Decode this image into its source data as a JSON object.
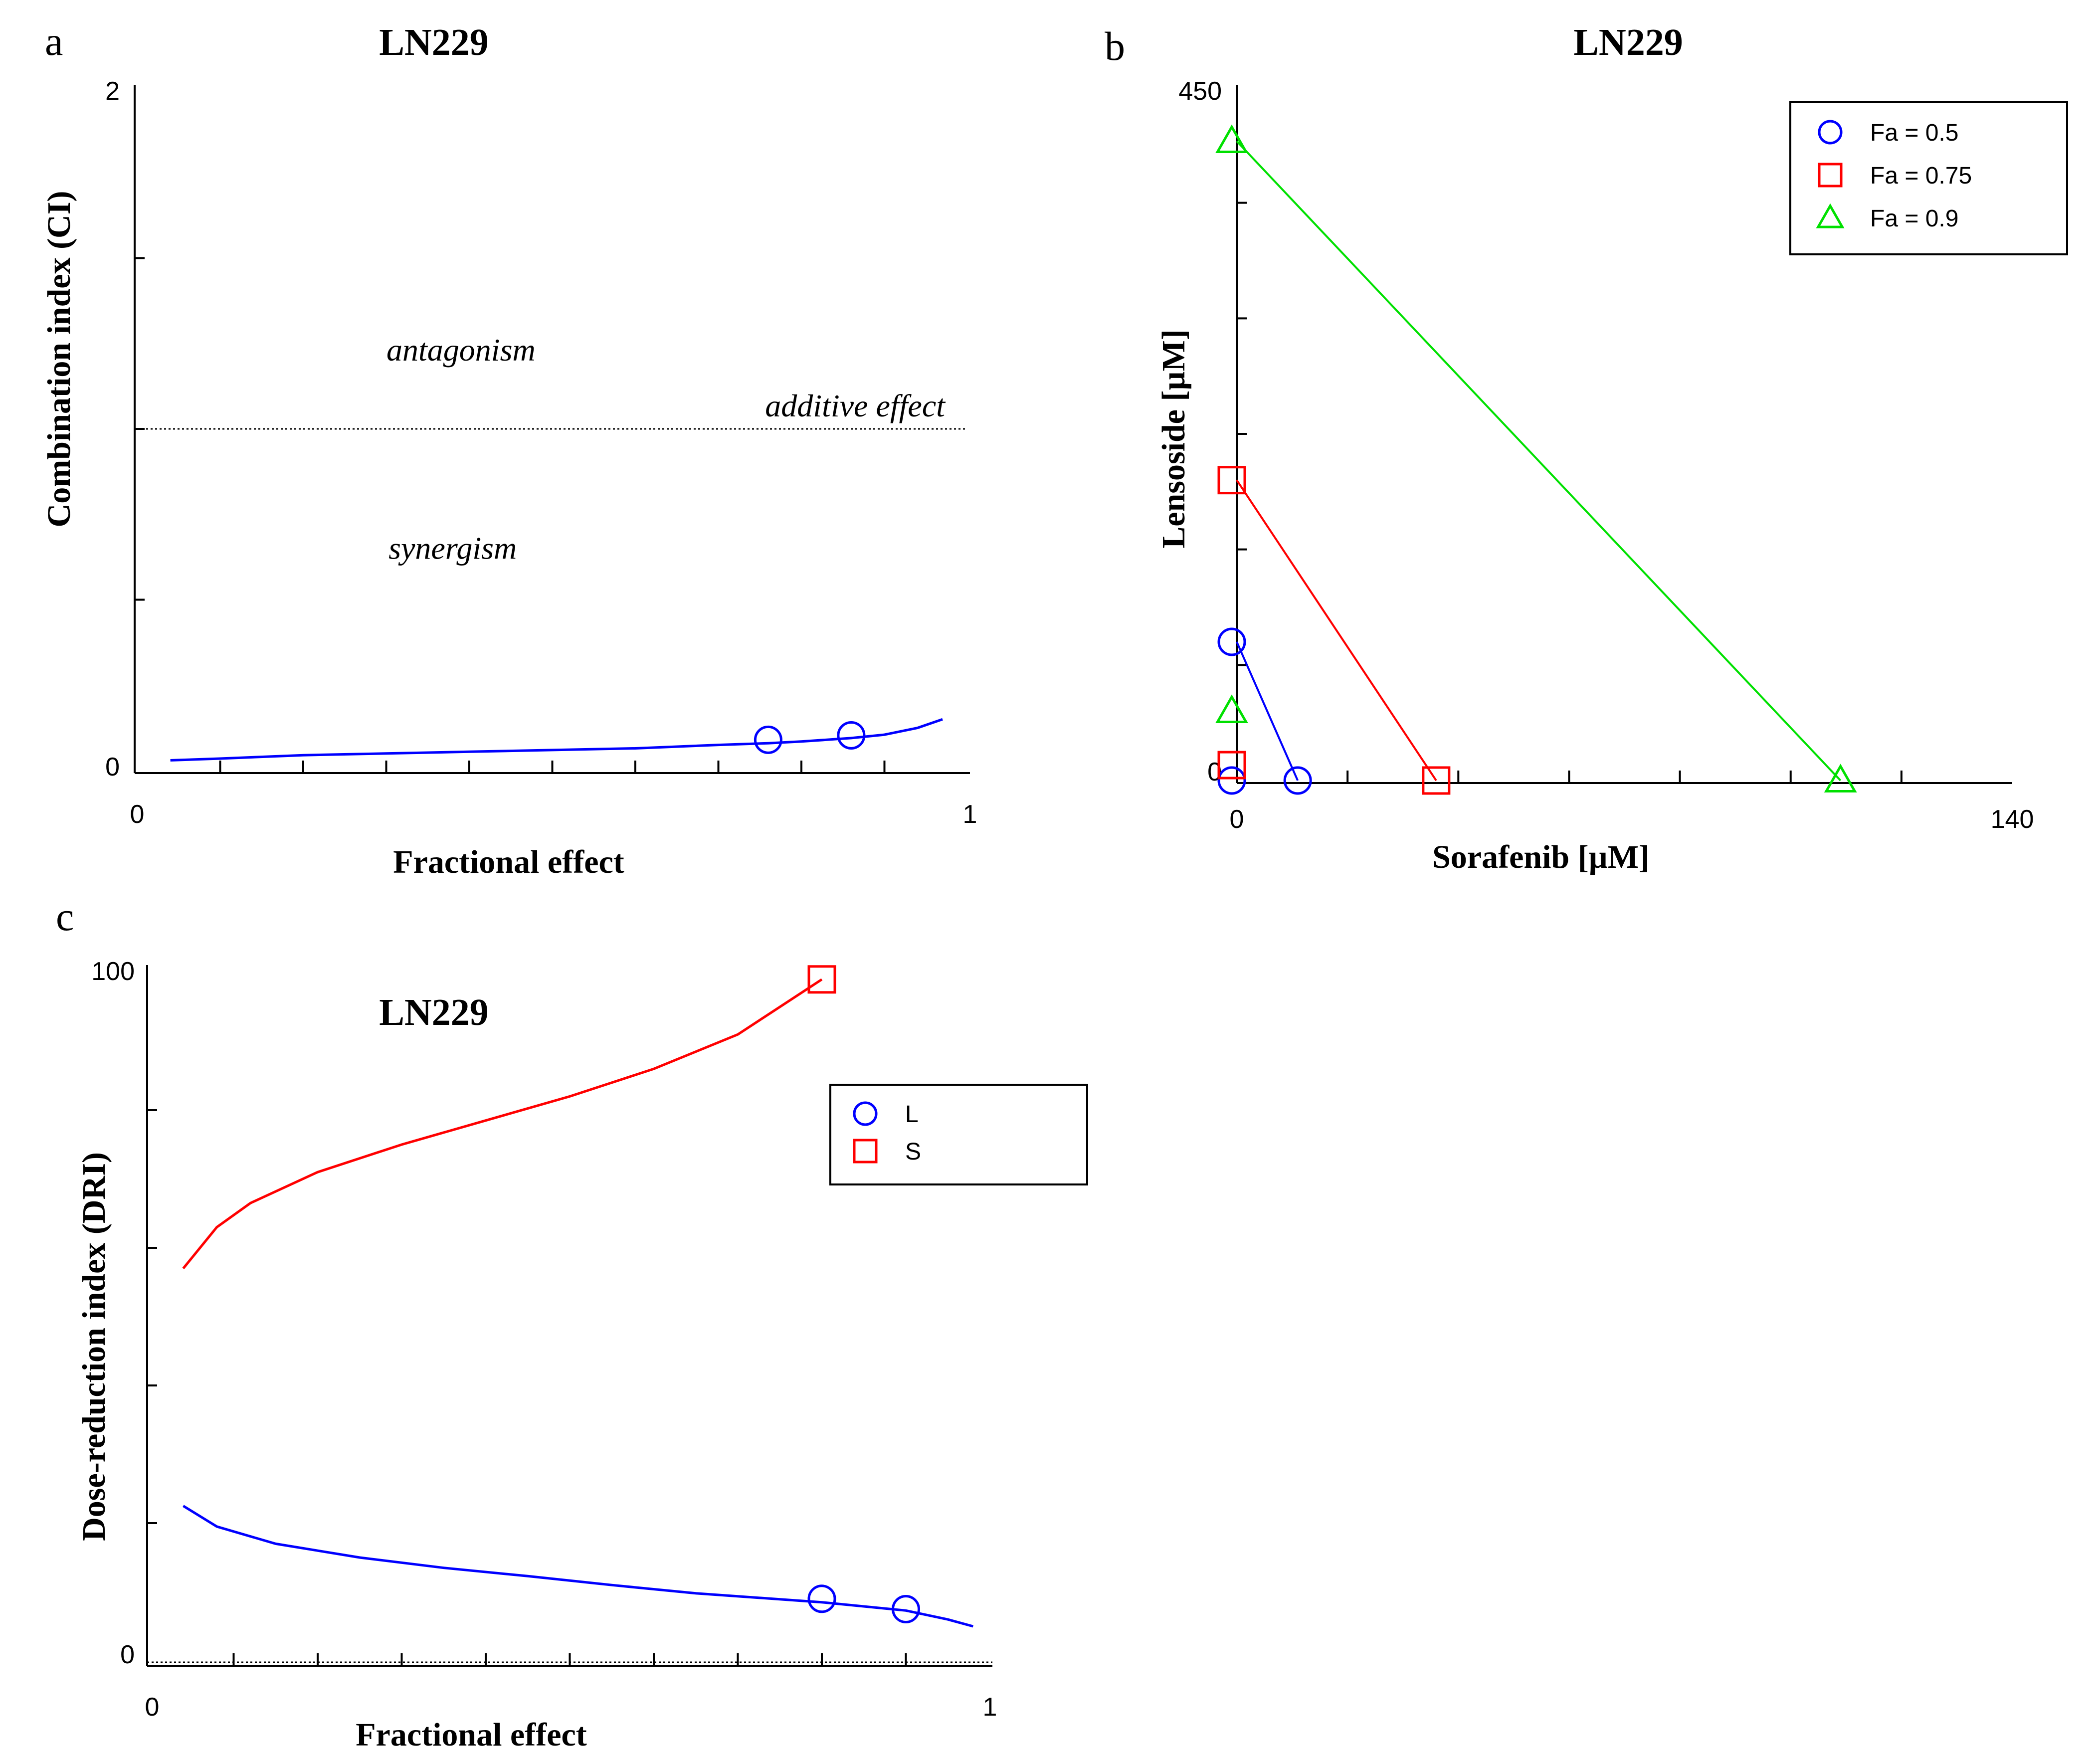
{
  "chart_data": [
    {
      "panel": "a",
      "type": "line",
      "title": "LN229",
      "xlabel": "Fractional effect",
      "ylabel": "Combination index (CI)",
      "xlim": [
        0,
        1
      ],
      "ylim": [
        0,
        2
      ],
      "x_tick_labels": [
        "0",
        "1"
      ],
      "y_tick_labels": [
        "0",
        "2"
      ],
      "reference_line": {
        "y": 1,
        "label": "additive effect",
        "style": "dotted"
      },
      "annotations": [
        {
          "text": "antagonism",
          "x": 0.39,
          "y": 1.2
        },
        {
          "text": "synergism",
          "x": 0.38,
          "y": 0.62
        }
      ],
      "series": [
        {
          "color": "#0000ff",
          "curve": {
            "x": [
              0.04,
              0.1,
              0.2,
              0.3,
              0.4,
              0.5,
              0.6,
              0.7,
              0.76,
              0.8,
              0.86,
              0.9,
              0.94,
              0.97
            ],
            "y": [
              0.03,
              0.035,
              0.045,
              0.05,
              0.055,
              0.06,
              0.065,
              0.075,
              0.08,
              0.085,
              0.095,
              0.105,
              0.125,
              0.15
            ]
          },
          "points": {
            "marker": "circle",
            "x": [
              0.76,
              0.86
            ],
            "y": [
              0.09,
              0.103
            ]
          }
        }
      ]
    },
    {
      "panel": "b",
      "type": "line",
      "title": "LN229",
      "xlabel": "Sorafenib [µM]",
      "ylabel": "Lensoside [µM]",
      "xlim": [
        0,
        140
      ],
      "ylim": [
        0,
        450
      ],
      "x_tick_labels": [
        "0",
        "140"
      ],
      "y_tick_labels": [
        "0",
        "450"
      ],
      "legend": {
        "position": "top-right",
        "entries": [
          "Fa = 0.5",
          "Fa = 0.75",
          "Fa = 0.9"
        ]
      },
      "series": [
        {
          "name": "Fa = 0.5",
          "color": "#0000ff",
          "marker": "circle",
          "line": {
            "x": [
              0,
              11
            ],
            "y": [
              90,
              0
            ]
          },
          "points": {
            "x": [
              0,
              11
            ],
            "y": [
              0,
              0
            ]
          }
        },
        {
          "name": "Fa = 0.75",
          "color": "#ff0000",
          "marker": "square",
          "line": {
            "x": [
              0,
              36
            ],
            "y": [
              195,
              0
            ]
          },
          "points": {
            "x": [
              0,
              36
            ],
            "y": [
              10,
              0
            ]
          }
        },
        {
          "name": "Fa = 0.9",
          "color": "#00e000",
          "marker": "triangle",
          "line": {
            "x": [
              0,
              109
            ],
            "y": [
              415,
              0
            ]
          },
          "points": {
            "x": [
              0,
              109
            ],
            "y": [
              45,
              0
            ]
          }
        }
      ]
    },
    {
      "panel": "c",
      "type": "line",
      "title": "LN229",
      "xlabel": "Fractional effect",
      "ylabel": "Dose-reduction index (DRI)",
      "xlim": [
        0,
        1
      ],
      "ylim": [
        0,
        100
      ],
      "x_tick_labels": [
        "0",
        "1"
      ],
      "y_tick_labels": [
        "0",
        "100"
      ],
      "legend": {
        "position": "top-right",
        "entries": [
          "L",
          "S"
        ]
      },
      "series": [
        {
          "name": "L",
          "color": "#0000ff",
          "marker": "circle",
          "curve": {
            "x": [
              0.04,
              0.08,
              0.15,
              0.25,
              0.35,
              0.45,
              0.55,
              0.65,
              0.8,
              0.9,
              0.95,
              0.98
            ],
            "y": [
              22.5,
              19.5,
              17,
              15,
              13.5,
              12.3,
              11,
              9.8,
              8.5,
              7.3,
              6,
              5
            ]
          },
          "points": {
            "x": [
              0.8,
              0.9
            ],
            "y": [
              9,
              7.5
            ]
          }
        },
        {
          "name": "S",
          "color": "#ff0000",
          "marker": "square",
          "curve": {
            "x": [
              0.04,
              0.08,
              0.12,
              0.2,
              0.3,
              0.4,
              0.5,
              0.6,
              0.7,
              0.8
            ],
            "y": [
              57,
              63,
              66.5,
              71,
              75,
              78.5,
              82,
              86,
              91,
              99
            ]
          },
          "points": {
            "x": [
              0.8
            ],
            "y": [
              99
            ]
          }
        }
      ]
    }
  ],
  "labels": {
    "panel_a": "a",
    "panel_b": "b",
    "panel_c": "c"
  }
}
